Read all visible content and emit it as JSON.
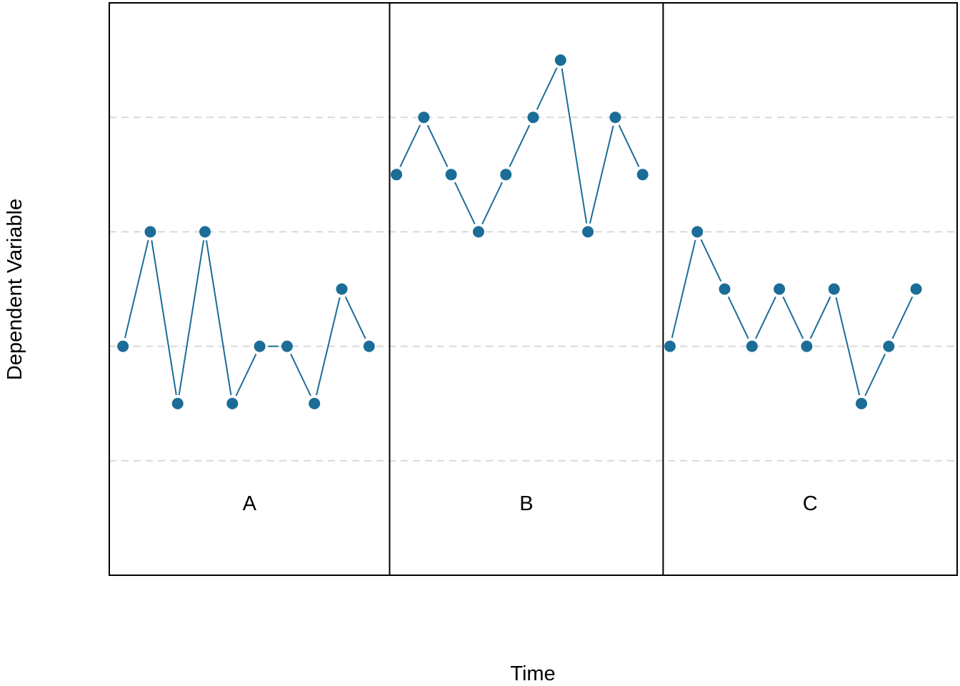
{
  "chart_data": {
    "type": "line",
    "xlabel": "Time",
    "ylabel": "Dependent Variable",
    "ylim": [
      0,
      10
    ],
    "grid_y": [
      2,
      4,
      6,
      8
    ],
    "grid": true,
    "colors": {
      "series": "#1b6d98",
      "grid": "#d9d9d9",
      "frame": "#000000"
    },
    "phases": [
      {
        "label": "A",
        "x_start": 0.5,
        "x_end": 10.75
      },
      {
        "label": "B",
        "x_start": 10.75,
        "x_end": 20.75
      },
      {
        "label": "C",
        "x_start": 20.75,
        "x_end": 31.5
      }
    ],
    "series": [
      {
        "phase": "A",
        "x": [
          1,
          2,
          3,
          4,
          5,
          6,
          7,
          8,
          9,
          10
        ],
        "values": [
          4,
          6,
          3,
          6,
          3,
          4,
          4,
          3,
          5,
          4
        ]
      },
      {
        "phase": "B",
        "x": [
          11,
          12,
          13,
          14,
          15,
          16,
          17,
          18,
          19,
          20
        ],
        "values": [
          7,
          8,
          7,
          6,
          7,
          8,
          9,
          6,
          8,
          7
        ]
      },
      {
        "phase": "C",
        "x": [
          21,
          22,
          23,
          24,
          25,
          26,
          27,
          28,
          29,
          30
        ],
        "values": [
          4,
          6,
          5,
          4,
          5,
          4,
          5,
          3,
          4,
          5
        ]
      }
    ]
  }
}
